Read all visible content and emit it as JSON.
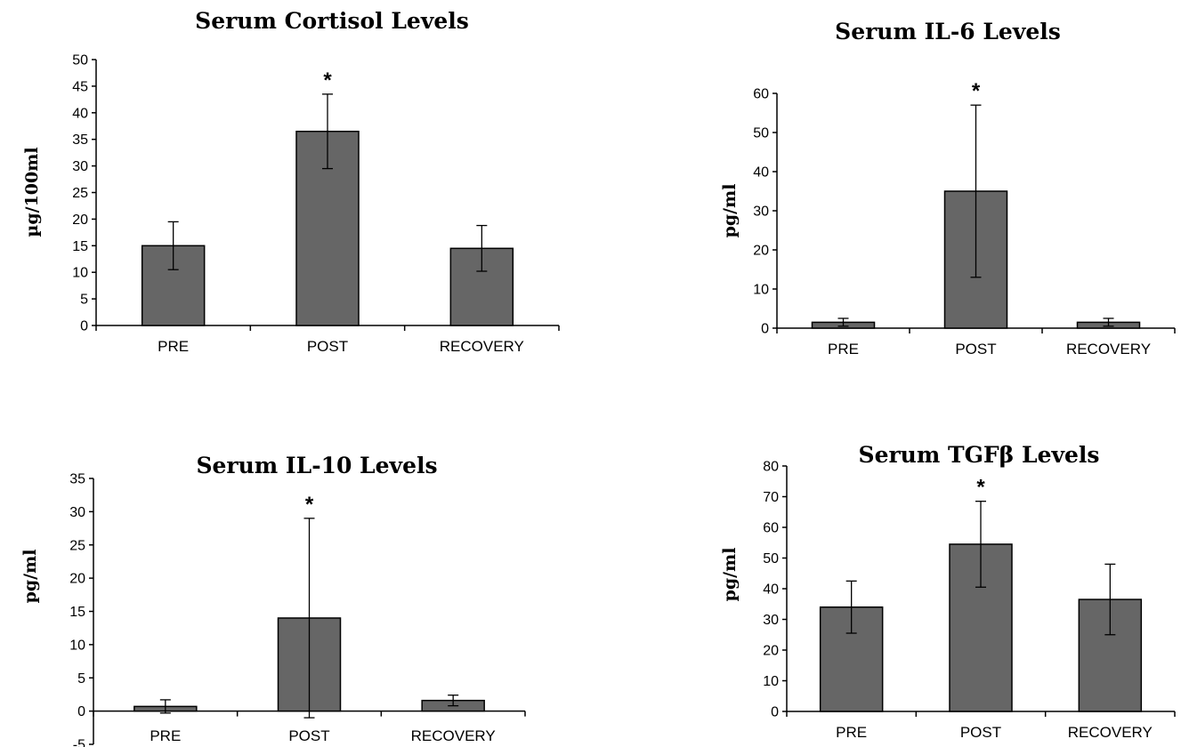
{
  "chart_data": [
    {
      "type": "bar",
      "title": "Serum Cortisol Levels",
      "xlabel": "",
      "ylabel": "µg/100ml",
      "categories": [
        "PRE",
        "POST",
        "RECOVERY"
      ],
      "values": [
        15,
        36.5,
        14.5
      ],
      "errors": [
        4.5,
        7,
        4.3
      ],
      "significance": [
        "",
        "*",
        ""
      ],
      "ylim": [
        0,
        50
      ],
      "yticks": [
        "0",
        "5",
        "10",
        "15",
        "20",
        "25",
        "30",
        "35",
        "40",
        "45",
        "50"
      ],
      "bar_color": "#666666"
    },
    {
      "type": "bar",
      "title": "Serum IL-6 Levels",
      "xlabel": "",
      "ylabel": "pg/ml",
      "categories": [
        "PRE",
        "POST",
        "RECOVERY"
      ],
      "values": [
        1.5,
        35,
        1.5
      ],
      "errors": [
        1,
        22,
        1
      ],
      "significance": [
        "",
        "*",
        ""
      ],
      "ylim": [
        0,
        60
      ],
      "yticks": [
        "0",
        "10",
        "20",
        "30",
        "40",
        "50",
        "60"
      ],
      "bar_color": "#666666"
    },
    {
      "type": "bar",
      "title": "Serum IL-10 Levels",
      "xlabel": "",
      "ylabel": "pg/ml",
      "categories": [
        "PRE",
        "POST",
        "RECOVERY"
      ],
      "values": [
        0.7,
        14,
        1.6
      ],
      "errors": [
        1,
        15,
        0.8
      ],
      "significance": [
        "",
        "*",
        ""
      ],
      "ylim": [
        -5,
        35
      ],
      "yticks": [
        "-5",
        "0",
        "5",
        "10",
        "15",
        "20",
        "25",
        "30",
        "35"
      ],
      "bar_color": "#666666"
    },
    {
      "type": "bar",
      "title": "Serum TGFβ Levels",
      "xlabel": "",
      "ylabel": "pg/ml",
      "categories": [
        "PRE",
        "POST",
        "RECOVERY"
      ],
      "values": [
        34,
        54.5,
        36.5
      ],
      "errors": [
        8.5,
        14,
        11.5
      ],
      "significance": [
        "",
        "*",
        ""
      ],
      "ylim": [
        0,
        80
      ],
      "yticks": [
        "0",
        "10",
        "20",
        "30",
        "40",
        "50",
        "60",
        "70",
        "80"
      ],
      "bar_color": "#666666"
    }
  ]
}
